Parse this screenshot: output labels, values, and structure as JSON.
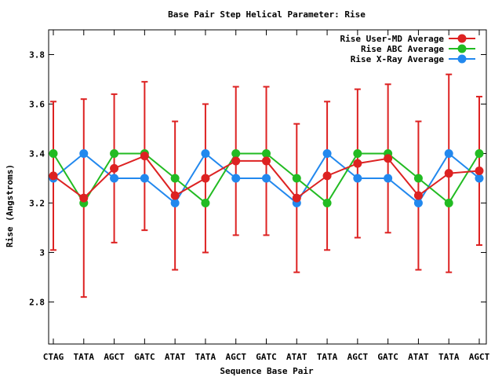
{
  "chart_data": {
    "type": "line",
    "title": "Base Pair Step Helical Parameter: Rise",
    "xlabel": "Sequence Base Pair",
    "ylabel": "Rise (Angstroms)",
    "categories": [
      "CTAG",
      "TATA",
      "AGCT",
      "GATC",
      "ATAT",
      "TATA",
      "AGCT",
      "GATC",
      "ATAT",
      "TATA",
      "AGCT",
      "GATC",
      "ATAT",
      "TATA",
      "AGCT"
    ],
    "ylim": [
      2.63,
      3.9
    ],
    "yticks": [
      2.8,
      3,
      3.2,
      3.4,
      3.6,
      3.8
    ],
    "ytick_labels": [
      "2.8",
      "3",
      "3.2",
      "3.4",
      "3.6",
      "3.8"
    ],
    "grid": false,
    "legend_position": "top-right",
    "series": [
      {
        "name": "Rise User-MD Average",
        "color": "#dd2222",
        "values": [
          3.31,
          3.22,
          3.34,
          3.39,
          3.23,
          3.3,
          3.37,
          3.37,
          3.22,
          3.31,
          3.36,
          3.38,
          3.23,
          3.32,
          3.33
        ],
        "error_low": [
          3.01,
          2.82,
          3.04,
          3.09,
          2.93,
          3.0,
          3.07,
          3.07,
          2.92,
          3.01,
          3.06,
          3.08,
          2.93,
          2.92,
          3.03
        ],
        "error_high": [
          3.61,
          3.62,
          3.64,
          3.69,
          3.53,
          3.6,
          3.67,
          3.67,
          3.52,
          3.61,
          3.66,
          3.68,
          3.53,
          3.72,
          3.63
        ]
      },
      {
        "name": "Rise ABC Average",
        "color": "#22bb22",
        "values": [
          3.4,
          3.2,
          3.4,
          3.4,
          3.3,
          3.2,
          3.4,
          3.4,
          3.3,
          3.2,
          3.4,
          3.4,
          3.3,
          3.2,
          3.4
        ]
      },
      {
        "name": "Rise X-Ray Average",
        "color": "#2288ee",
        "values": [
          3.3,
          3.4,
          3.3,
          3.3,
          3.2,
          3.4,
          3.3,
          3.3,
          3.2,
          3.4,
          3.3,
          3.3,
          3.2,
          3.4,
          3.3
        ]
      }
    ]
  }
}
